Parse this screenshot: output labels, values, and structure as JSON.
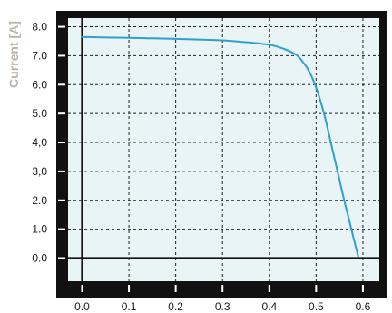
{
  "chart_data": {
    "type": "line",
    "title": "",
    "xlabel": "",
    "ylabel": "Current [A]",
    "xlim": [
      -0.03,
      0.635
    ],
    "ylim": [
      -0.8,
      8.3
    ],
    "x_ticks": [
      "0.0",
      "0.1",
      "0.2",
      "0.3",
      "0.4",
      "0.5",
      "0.6"
    ],
    "y_ticks": [
      "0.0",
      "1.0",
      "2.0",
      "3,0",
      "4,0",
      "5.0",
      "6.0",
      "7.0",
      "8.0"
    ],
    "grid": true,
    "legend": "none",
    "colors": {
      "line": "#2f9fd0",
      "plot_background": "#e8f4f5",
      "frame": "#111111",
      "grid": "#1f1f1f",
      "ylabel": "#b9b3aa"
    },
    "series": [
      {
        "x": [
          0.0,
          0.05,
          0.1,
          0.15,
          0.2,
          0.25,
          0.3,
          0.35,
          0.38,
          0.4,
          0.42,
          0.44,
          0.46,
          0.47,
          0.48,
          0.49,
          0.5,
          0.51,
          0.52,
          0.53,
          0.54,
          0.55,
          0.56,
          0.57,
          0.58,
          0.59
        ],
        "y": [
          7.65,
          7.63,
          7.62,
          7.6,
          7.58,
          7.56,
          7.53,
          7.47,
          7.42,
          7.38,
          7.3,
          7.18,
          7.0,
          6.82,
          6.6,
          6.3,
          5.9,
          5.4,
          4.8,
          4.1,
          3.4,
          2.7,
          2.0,
          1.35,
          0.7,
          0.05
        ]
      }
    ]
  }
}
